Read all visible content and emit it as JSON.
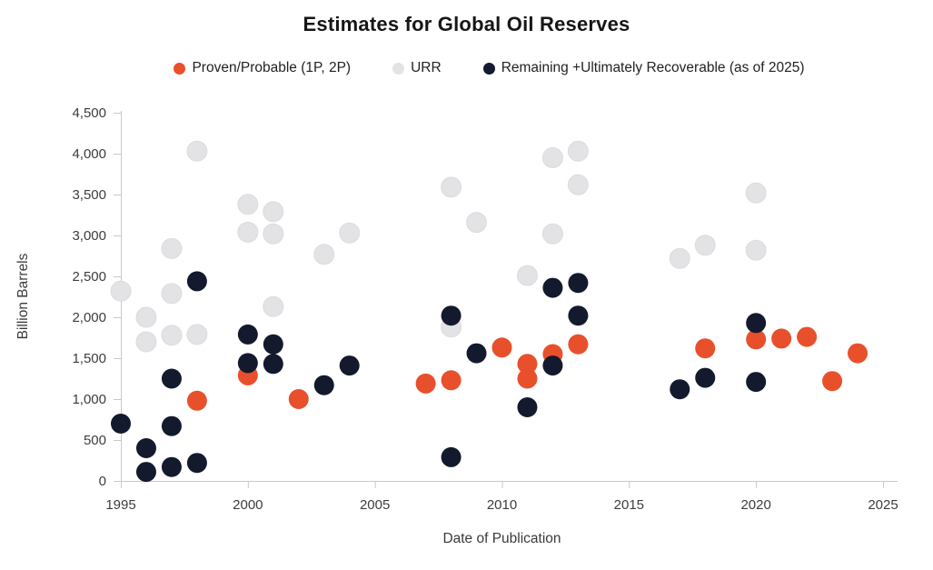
{
  "title": "Estimates for Global Oil Reserves",
  "legend": {
    "items": [
      {
        "id": "1p2p",
        "label": "Proven/Probable (1P, 2P)",
        "color": "#E8502B"
      },
      {
        "id": "urr",
        "label": "URR",
        "color": "#E3E3E6"
      },
      {
        "id": "remaining",
        "label": "Remaining +Ultimately Recoverable (as of 2025)",
        "color": "#131A2E"
      }
    ]
  },
  "chart_data": {
    "type": "scatter",
    "title": "Estimates for Global Oil Reserves",
    "xlabel": "Date of Publication",
    "ylabel": "Billion Barrels",
    "xlim": [
      1995,
      2025
    ],
    "ylim": [
      0,
      4500
    ],
    "grid": false,
    "legend_position": "top",
    "x_ticks": [
      1995,
      2000,
      2005,
      2010,
      2015,
      2020,
      2025
    ],
    "x_tick_labels": [
      "1995",
      "2000",
      "2005",
      "2010",
      "2015",
      "2020",
      "2025"
    ],
    "y_ticks": [
      0,
      500,
      1000,
      1500,
      2000,
      2500,
      3000,
      3500,
      4000,
      4500
    ],
    "y_tick_labels": [
      "0",
      "500",
      "1,000",
      "1,500",
      "2,000",
      "2,500",
      "3,000",
      "3,500",
      "4,000",
      "4,500"
    ],
    "series": [
      {
        "id": "urr",
        "name": "URR",
        "color": "#E3E3E6",
        "stroke": "#DCDCDF",
        "points": [
          [
            1995,
            2320
          ],
          [
            1996,
            2000
          ],
          [
            1996,
            1700
          ],
          [
            1997,
            2840
          ],
          [
            1997,
            2290
          ],
          [
            1997,
            1780
          ],
          [
            1998,
            4030
          ],
          [
            1998,
            1790
          ],
          [
            2000,
            3380
          ],
          [
            2000,
            3040
          ],
          [
            2001,
            3290
          ],
          [
            2001,
            3020
          ],
          [
            2001,
            2130
          ],
          [
            2003,
            2770
          ],
          [
            2004,
            3030
          ],
          [
            2008,
            3590
          ],
          [
            2008,
            1880
          ],
          [
            2009,
            3160
          ],
          [
            2011,
            2510
          ],
          [
            2012,
            3950
          ],
          [
            2012,
            3020
          ],
          [
            2013,
            4030
          ],
          [
            2013,
            3620
          ],
          [
            2017,
            2720
          ],
          [
            2018,
            2880
          ],
          [
            2020,
            3520
          ],
          [
            2020,
            2820
          ]
        ]
      },
      {
        "id": "1p2p",
        "name": "Proven/Probable (1P, 2P)",
        "color": "#E8502B",
        "stroke": "none",
        "points": [
          [
            1998,
            980
          ],
          [
            2000,
            1290
          ],
          [
            2002,
            1000
          ],
          [
            2007,
            1190
          ],
          [
            2008,
            1230
          ],
          [
            2010,
            1630
          ],
          [
            2011,
            1430
          ],
          [
            2011,
            1250
          ],
          [
            2012,
            1550
          ],
          [
            2013,
            1670
          ],
          [
            2018,
            1620
          ],
          [
            2020,
            1730
          ],
          [
            2021,
            1740
          ],
          [
            2022,
            1760
          ],
          [
            2023,
            1220
          ],
          [
            2024,
            1560
          ]
        ]
      },
      {
        "id": "remaining",
        "name": "Remaining +Ultimately Recoverable (as of 2025)",
        "color": "#131A2E",
        "stroke": "none",
        "points": [
          [
            1995,
            700
          ],
          [
            1996,
            400
          ],
          [
            1996,
            110
          ],
          [
            1997,
            1250
          ],
          [
            1997,
            670
          ],
          [
            1997,
            170
          ],
          [
            1998,
            2440
          ],
          [
            1998,
            220
          ],
          [
            2000,
            1790
          ],
          [
            2000,
            1440
          ],
          [
            2001,
            1670
          ],
          [
            2001,
            1430
          ],
          [
            2003,
            1170
          ],
          [
            2004,
            1410
          ],
          [
            2008,
            2020
          ],
          [
            2008,
            290
          ],
          [
            2009,
            1560
          ],
          [
            2011,
            900
          ],
          [
            2012,
            2360
          ],
          [
            2012,
            1410
          ],
          [
            2013,
            2420
          ],
          [
            2013,
            2020
          ],
          [
            2017,
            1120
          ],
          [
            2018,
            1260
          ],
          [
            2020,
            1930
          ],
          [
            2020,
            1210
          ]
        ]
      }
    ],
    "colors": {
      "axis_line": "#C9C9C9",
      "tick_text": "#3d3d3d",
      "background": "#ffffff"
    }
  }
}
